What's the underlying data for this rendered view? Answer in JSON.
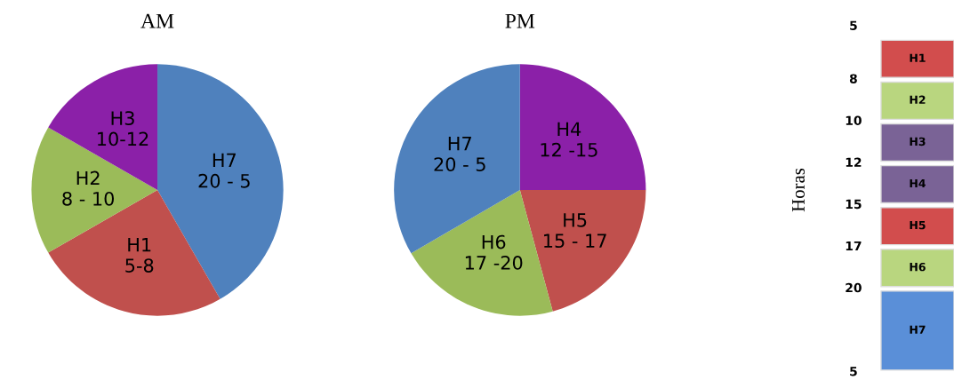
{
  "chart_data": [
    {
      "type": "pie",
      "title": "AM",
      "categories": [
        "H7\n20 - 5",
        "H1\n5-8",
        "H2\n8 - 10",
        "H3\n10-12"
      ],
      "values": [
        41.7,
        25,
        16.6,
        16.7
      ],
      "colors": [
        "#4f81bd",
        "#c0504d",
        "#9bbb59",
        "#8b20a8"
      ]
    },
    {
      "type": "pie",
      "title": "PM",
      "categories": [
        "H4\n12 -15",
        "H5\n15 - 17",
        "H6\n17 -20",
        "H7\n20 - 5"
      ],
      "values": [
        25,
        20.8,
        20.8,
        33.4
      ],
      "colors": [
        "#8b20a8",
        "#c0504d",
        "#9bbb59",
        "#4f81bd"
      ]
    },
    {
      "type": "other",
      "ylabel": "Horas",
      "categories": [
        "H1",
        "H2",
        "H3",
        "H4",
        "H5",
        "H6",
        "H7"
      ],
      "colors": [
        "#d24d4d",
        "#b9d67f",
        "#7a6396",
        "#7a6396",
        "#d24d4d",
        "#b9d67f",
        "#5a8fd8"
      ],
      "annotations": [
        "5",
        "8",
        "10",
        "12",
        "15",
        "17",
        "20",
        "5"
      ]
    }
  ]
}
